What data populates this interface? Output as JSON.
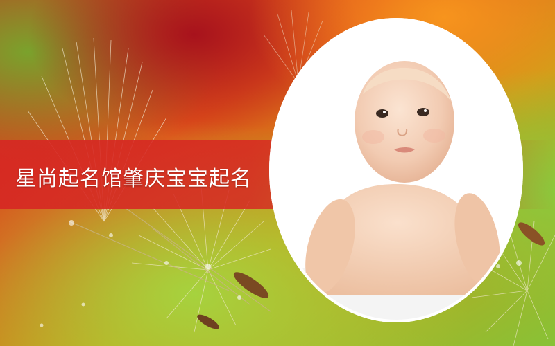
{
  "title": "星尚起名馆肇庆宝宝起名",
  "colors": {
    "banner": "#d62823",
    "title_text": "#ffffff",
    "background_green": "#8cc63e",
    "background_orange": "#f05a14",
    "background_red": "#b4141e"
  },
  "icons": [
    "dandelion-seed-background",
    "baby-photo",
    "oval-frame"
  ]
}
